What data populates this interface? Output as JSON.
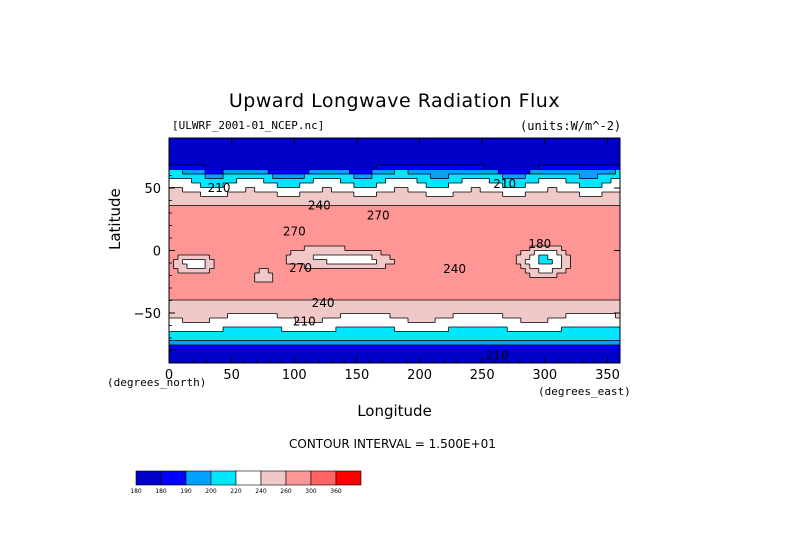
{
  "chart_data": {
    "type": "heatmap",
    "title": "Upward Longwave Radiation Flux",
    "dataset_label": "[ULWRF_2001-01_NCEP.nc]",
    "units": "(units:W/m^-2)",
    "xlabel": "Longitude",
    "ylabel": "Latitude",
    "x_units": "(degrees_east)",
    "y_units": "(degrees_north)",
    "xlim": [
      0,
      360
    ],
    "ylim": [
      -90,
      90
    ],
    "x_ticks": [
      0,
      50,
      100,
      150,
      200,
      250,
      300,
      350
    ],
    "y_ticks": [
      -50,
      0,
      50
    ],
    "contour_interval_text": "CONTOUR INTERVAL = 1.500E+01",
    "contour_labels": [
      {
        "lon": 40,
        "lat": 47,
        "text": "210"
      },
      {
        "lon": 120,
        "lat": 33,
        "text": "240"
      },
      {
        "lon": 167,
        "lat": 25,
        "text": "270"
      },
      {
        "lon": 100,
        "lat": 12,
        "text": "270"
      },
      {
        "lon": 105,
        "lat": -17,
        "text": "270"
      },
      {
        "lon": 228,
        "lat": -18,
        "text": "240"
      },
      {
        "lon": 123,
        "lat": -45,
        "text": "240"
      },
      {
        "lon": 108,
        "lat": -60,
        "text": "210"
      },
      {
        "lon": 262,
        "lat": -87,
        "text": "210"
      },
      {
        "lon": 268,
        "lat": 50,
        "text": "210"
      },
      {
        "lon": 296,
        "lat": 2,
        "text": "180"
      }
    ],
    "colorbar": {
      "levels": [
        "180",
        "180",
        "190",
        "200",
        "220",
        "240",
        "260",
        "300",
        "360"
      ],
      "colors": [
        "#0000c8",
        "#0000ff",
        "#00a0ff",
        "#00e6ff",
        "#ffffff",
        "#f0c8c8",
        "#ff9696",
        "#ff6464",
        "#ff0000"
      ]
    },
    "field_description": {
      "bands": [
        {
          "lat_from": 65,
          "lat_to": 90,
          "value": 175
        },
        {
          "lat_from": 45,
          "lat_to": 65,
          "value": 205
        },
        {
          "lat_from": 35,
          "lat_to": 45,
          "value": 235
        },
        {
          "lat_from": -30,
          "lat_to": 35,
          "value": 270
        },
        {
          "lat_from": -45,
          "lat_to": -30,
          "value": 250
        },
        {
          "lat_from": -65,
          "lat_to": -45,
          "value": 220
        },
        {
          "lat_from": -90,
          "lat_to": -65,
          "value": 200
        }
      ]
    }
  }
}
